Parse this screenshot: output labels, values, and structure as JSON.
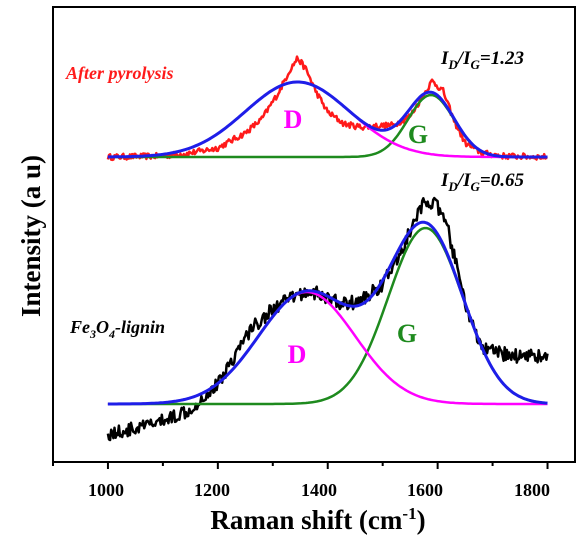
{
  "chart_data": {
    "type": "line",
    "xlabel": "Raman shift (cm",
    "xlabel_sup": "-1",
    "xlabel_close": ")",
    "ylabel": "Intensity (a u)",
    "xlim": [
      900,
      1850
    ],
    "x_ticks": [
      "1000",
      "1200",
      "1400",
      "1600",
      "1800"
    ],
    "colors": {
      "raw_top": "#ff1a1a",
      "raw_bottom": "#000000",
      "fit": "#1e1ee8",
      "d_band": "#ff00ff",
      "g_band": "#1e8a1e"
    },
    "panels": [
      {
        "id": "top",
        "sample": "After pyrolysis",
        "sample_color": "#ff1a1a",
        "ratio": {
          "I1": "I",
          "sub1": "D",
          "slash": "/",
          "I2": "I",
          "sub2": "G",
          "value": "=1.23"
        },
        "d_label": "D",
        "g_label": "G",
        "baseline": 0,
        "d_band": {
          "center": 1345,
          "width": 95,
          "height": 75
        },
        "g_band": {
          "center": 1588,
          "width": 42,
          "height": 62
        },
        "raw_points": [
          [
            1000,
            0
          ],
          [
            1100,
            1
          ],
          [
            1150,
            4
          ],
          [
            1200,
            9
          ],
          [
            1250,
            24
          ],
          [
            1280,
            38
          ],
          [
            1310,
            64
          ],
          [
            1330,
            86
          ],
          [
            1345,
            99
          ],
          [
            1360,
            88
          ],
          [
            1380,
            64
          ],
          [
            1400,
            45
          ],
          [
            1430,
            33
          ],
          [
            1460,
            30
          ],
          [
            1490,
            31
          ],
          [
            1520,
            32
          ],
          [
            1550,
            41
          ],
          [
            1570,
            58
          ],
          [
            1590,
            76
          ],
          [
            1610,
            66
          ],
          [
            1630,
            36
          ],
          [
            1650,
            14
          ],
          [
            1680,
            4
          ],
          [
            1720,
            1
          ],
          [
            1800,
            0
          ]
        ]
      },
      {
        "id": "bottom",
        "sample": "Fe",
        "sample_sub1": "3",
        "sample_mid": "O",
        "sample_sub2": "4",
        "sample_end": "-lignin",
        "sample_color": "#000000",
        "ratio": {
          "I1": "I",
          "sub1": "D",
          "slash": "/",
          "I2": "I",
          "sub2": "G",
          "value": "=0.65"
        },
        "d_label": "D",
        "g_label": "G",
        "baseline": 0,
        "d_band": {
          "center": 1362,
          "width": 88,
          "height": 112
        },
        "g_band": {
          "center": 1578,
          "width": 68,
          "height": 176
        },
        "raw_points": [
          [
            1000,
            -30
          ],
          [
            1050,
            -25
          ],
          [
            1100,
            -17
          ],
          [
            1150,
            -5
          ],
          [
            1200,
            20
          ],
          [
            1230,
            48
          ],
          [
            1260,
            75
          ],
          [
            1300,
            95
          ],
          [
            1340,
            108
          ],
          [
            1370,
            113
          ],
          [
            1400,
            105
          ],
          [
            1430,
            100
          ],
          [
            1460,
            103
          ],
          [
            1500,
            120
          ],
          [
            1530,
            148
          ],
          [
            1560,
            185
          ],
          [
            1580,
            205
          ],
          [
            1600,
            197
          ],
          [
            1620,
            172
          ],
          [
            1640,
            124
          ],
          [
            1660,
            82
          ],
          [
            1680,
            56
          ],
          [
            1700,
            52
          ],
          [
            1740,
            48
          ],
          [
            1770,
            50
          ],
          [
            1800,
            45
          ]
        ]
      }
    ]
  }
}
